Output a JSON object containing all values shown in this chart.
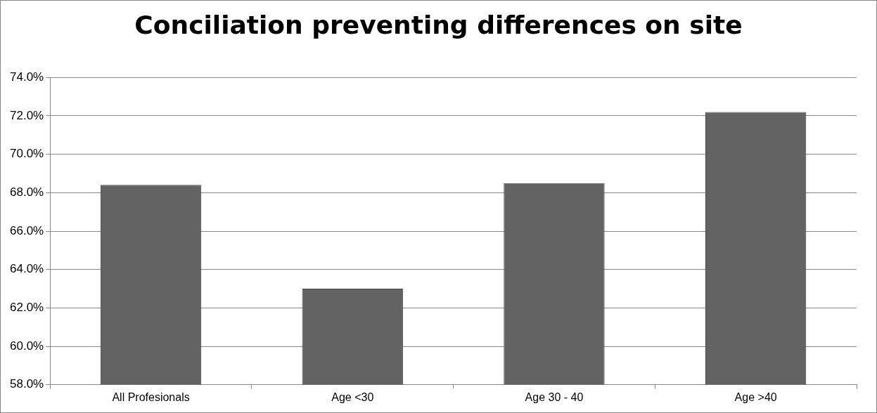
{
  "chart_data": {
    "type": "bar",
    "title": "Conciliation preventing differences on site",
    "categories": [
      "All Profesionals",
      "Age <30",
      "Age 30 - 40",
      "Age >40"
    ],
    "values": [
      68.4,
      63.0,
      68.5,
      72.2
    ],
    "color": "#636363",
    "ylim": [
      58,
      74
    ],
    "yticks": [
      {
        "value": 58,
        "label": "58.0%"
      },
      {
        "value": 60,
        "label": "60.0%"
      },
      {
        "value": 62,
        "label": "62.0%"
      },
      {
        "value": 64,
        "label": "64.0%"
      },
      {
        "value": 66,
        "label": "66.0%"
      },
      {
        "value": 68,
        "label": "68.0%"
      },
      {
        "value": 70,
        "label": "70.0%"
      },
      {
        "value": 72,
        "label": "72.0%"
      },
      {
        "value": 74,
        "label": "74.0%"
      }
    ],
    "grid": "y",
    "legend": false
  }
}
